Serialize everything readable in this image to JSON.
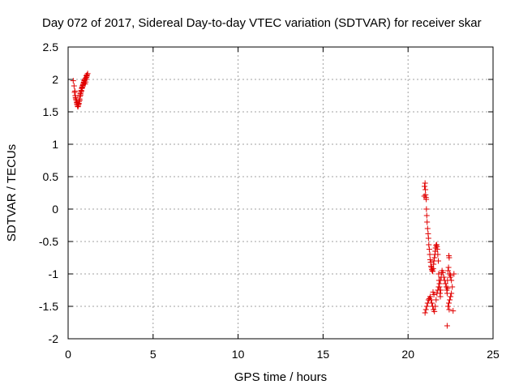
{
  "chart_data": {
    "type": "scatter",
    "title": "Day 072 of 2017, Sidereal Day-to-day VTEC variation (SDTVAR) for receiver skar",
    "xlabel": "GPS time / hours",
    "ylabel": "SDTVAR / TECUs",
    "xlim": [
      0,
      25
    ],
    "ylim": [
      -2,
      2.5
    ],
    "xticks": [
      0,
      5,
      10,
      15,
      20,
      25
    ],
    "yticks": [
      -2,
      -1.5,
      -1,
      -0.5,
      0,
      0.5,
      1,
      1.5,
      2,
      2.5
    ],
    "xtick_labels": [
      "0",
      "5",
      "10",
      "15",
      "20",
      "25"
    ],
    "ytick_labels": [
      "-2",
      "-1.5",
      "-1",
      "-0.5",
      "0",
      "0.5",
      "1",
      "1.5",
      "2",
      "2.5"
    ],
    "grid": true,
    "marker": "+",
    "marker_color": "#e00000",
    "series": [
      {
        "name": "SDTVAR",
        "x": [
          0.3,
          0.35,
          0.4,
          0.42,
          0.45,
          0.48,
          0.5,
          0.52,
          0.55,
          0.57,
          0.6,
          0.62,
          0.65,
          0.67,
          0.7,
          0.72,
          0.75,
          0.77,
          0.8,
          0.82,
          0.85,
          0.88,
          0.9,
          0.93,
          0.95,
          0.98,
          1.0,
          1.03,
          1.05,
          1.08,
          1.1,
          1.12,
          1.15,
          0.38,
          0.44,
          0.53,
          0.58,
          0.63,
          0.68,
          0.73,
          0.78,
          0.83,
          0.87,
          0.92,
          0.97,
          1.02,
          1.07,
          20.95,
          20.97,
          21.0,
          21.02,
          21.03,
          21.05,
          21.07,
          21.08,
          21.1,
          21.12,
          21.15,
          21.18,
          21.2,
          21.22,
          21.25,
          21.28,
          21.3,
          21.33,
          21.35,
          21.38,
          21.4,
          21.42,
          21.45,
          21.48,
          21.5,
          21.52,
          21.55,
          21.58,
          21.6,
          21.62,
          21.65,
          21.68,
          21.7,
          21.72,
          21.75,
          21.78,
          21.8,
          21.82,
          21.85,
          21.88,
          21.9,
          21.92,
          21.95,
          21.98,
          22.0,
          22.05,
          22.1,
          22.15,
          22.2,
          22.25,
          22.28,
          22.3,
          22.32,
          22.35,
          22.38,
          22.4,
          22.42,
          22.45,
          22.48,
          22.5,
          22.55,
          22.6,
          22.7,
          21.0,
          21.05,
          21.1,
          21.15,
          21.2,
          21.25,
          21.3,
          21.35,
          21.4,
          21.45,
          21.5,
          21.55,
          21.6,
          21.65,
          21.7,
          21.75,
          21.8,
          21.85,
          21.9,
          22.3,
          22.35,
          22.4,
          22.45,
          22.5,
          22.55,
          22.65,
          22.42,
          22.33,
          21.47,
          21.52
        ],
        "y": [
          1.98,
          1.9,
          1.82,
          1.75,
          1.7,
          1.68,
          1.65,
          1.62,
          1.6,
          1.58,
          1.6,
          1.62,
          1.66,
          1.7,
          1.74,
          1.78,
          1.8,
          1.83,
          1.86,
          1.88,
          1.9,
          1.92,
          1.94,
          1.96,
          1.98,
          2.0,
          1.93,
          1.96,
          2.0,
          2.03,
          2.05,
          2.07,
          2.09,
          1.8,
          1.72,
          1.64,
          1.58,
          1.63,
          1.68,
          1.76,
          1.82,
          1.87,
          1.91,
          1.95,
          1.99,
          2.02,
          2.06,
          0.2,
          0.35,
          0.4,
          0.3,
          0.22,
          0.18,
          0.15,
          0.0,
          -0.1,
          -0.2,
          -0.3,
          -0.38,
          -0.45,
          -0.55,
          -0.62,
          -0.7,
          -0.78,
          -0.82,
          -0.88,
          -0.9,
          -0.93,
          -0.95,
          -0.96,
          -0.92,
          -0.85,
          -0.8,
          -0.75,
          -0.7,
          -0.65,
          -0.6,
          -0.56,
          -0.55,
          -0.58,
          -0.62,
          -0.7,
          -0.8,
          -1.0,
          -1.1,
          -1.2,
          -1.3,
          -1.35,
          -1.25,
          -1.05,
          -0.98,
          -0.95,
          -0.98,
          -1.05,
          -1.1,
          -1.15,
          -1.2,
          -1.25,
          -1.3,
          -1.1,
          -0.95,
          -0.9,
          -0.72,
          -0.75,
          -1.0,
          -1.05,
          -1.02,
          -1.1,
          -1.2,
          -1.0,
          -1.6,
          -1.55,
          -1.5,
          -1.45,
          -1.4,
          -1.38,
          -1.35,
          -1.4,
          -1.45,
          -1.5,
          -1.55,
          -1.58,
          -1.5,
          -1.4,
          -1.3,
          -1.25,
          -1.2,
          -1.15,
          -1.1,
          -1.8,
          -1.5,
          -1.45,
          -1.4,
          -1.35,
          -1.3,
          -1.57,
          -1.55,
          -1.22,
          -1.28,
          -1.32
        ]
      }
    ]
  }
}
